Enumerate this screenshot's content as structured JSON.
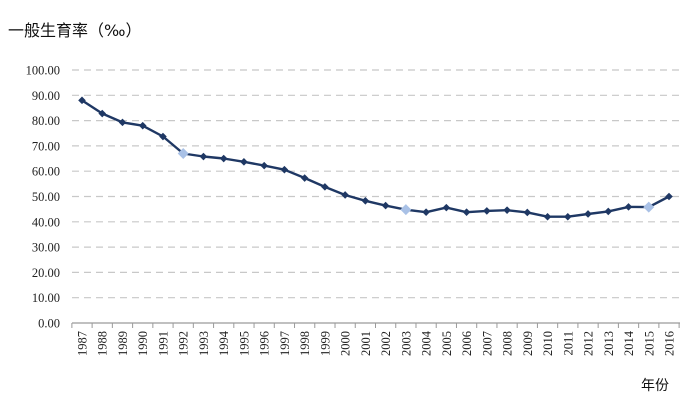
{
  "chart_data": {
    "type": "line",
    "ylabel": "一般生育率（‰）",
    "xlabel": "年份",
    "ylim": [
      0,
      100
    ],
    "yticks": [
      "0.00",
      "10.00",
      "20.00",
      "30.00",
      "40.00",
      "50.00",
      "60.00",
      "70.00",
      "80.00",
      "90.00",
      "100.00"
    ],
    "grid": true,
    "line_color": "#1f3864",
    "marker_color": "#1f3864",
    "highlight_color": "#a9c1e6",
    "categories": [
      "1987",
      "1988",
      "1989",
      "1990",
      "1991",
      "1992",
      "1993",
      "1994",
      "1995",
      "1996",
      "1997",
      "1998",
      "1999",
      "2000",
      "2001",
      "2002",
      "2003",
      "2004",
      "2005",
      "2006",
      "2007",
      "2008",
      "2009",
      "2010",
      "2011",
      "2012",
      "2013",
      "2014",
      "2015",
      "2016"
    ],
    "series": [
      {
        "values": [
          88.0,
          82.8,
          79.3,
          78.0,
          73.7,
          67.0,
          65.8,
          65.0,
          63.7,
          62.2,
          60.6,
          57.3,
          53.8,
          50.6,
          48.3,
          46.4,
          44.8,
          43.8,
          45.6,
          43.8,
          44.3,
          44.6,
          43.7,
          42.0,
          42.0,
          43.1,
          44.1,
          45.9,
          45.8,
          50.0
        ],
        "highlight_categories": [
          "1992",
          "2003",
          "2015"
        ]
      }
    ]
  }
}
